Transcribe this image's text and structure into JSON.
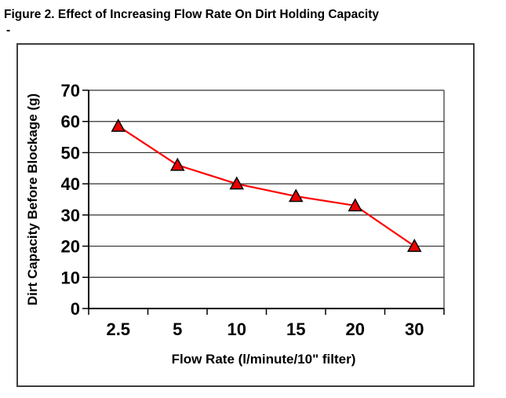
{
  "figure": {
    "title": "Figure 2. Effect of Increasing Flow Rate On Dirt Holding Capacity",
    "subtitle_dash": "-"
  },
  "colors": {
    "line": "#FF0000",
    "marker_fill": "#EC0000",
    "marker_stroke": "#000000",
    "gridline": "#303030",
    "axis": "#000000",
    "frame_border": "#3d3d3d",
    "text": "#000000",
    "background": "#FFFFFF"
  },
  "chart_data": {
    "type": "line",
    "title": "",
    "categories": [
      "2.5",
      "5",
      "10",
      "15",
      "20",
      "30"
    ],
    "values": [
      58.5,
      46,
      40,
      36,
      33,
      20
    ],
    "xlabel": "Flow Rate (l/minute/10\" filter)",
    "ylabel": "Dirt Capacity Before Blockage (g)",
    "ylim": [
      0,
      70
    ],
    "yticks": [
      0,
      10,
      20,
      30,
      40,
      50,
      60,
      70
    ],
    "grid": "horizontal-only",
    "legend_position": "none",
    "marker": "triangle-up"
  }
}
